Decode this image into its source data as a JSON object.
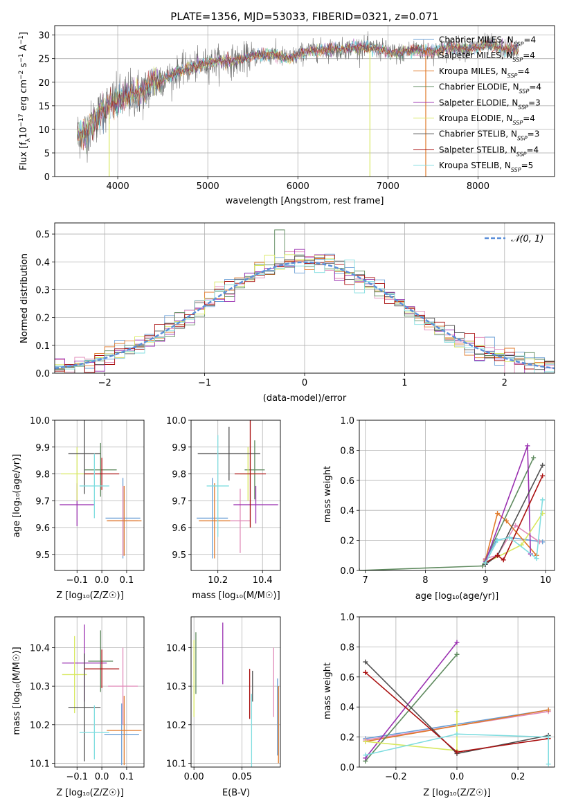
{
  "figure": {
    "title": "PLATE=1356, MJD=53033, FIBERID=0321, z=0.071"
  },
  "series": [
    {
      "name": "Chabrier MILES",
      "nssp": "4",
      "color": "#6a9fd6"
    },
    {
      "name": "Salpeter MILES",
      "nssp": "4",
      "color": "#e08ab8"
    },
    {
      "name": "Kroupa MILES",
      "nssp": "4",
      "color": "#e07a2a"
    },
    {
      "name": "Chabrier ELODIE",
      "nssp": "4",
      "color": "#5e8a5e"
    },
    {
      "name": "Salpeter ELODIE",
      "nssp": "3",
      "color": "#9a30b0"
    },
    {
      "name": "Kroupa ELODIE",
      "nssp": "4",
      "color": "#d8e860"
    },
    {
      "name": "Chabrier STELIB",
      "nssp": "3",
      "color": "#505050"
    },
    {
      "name": "Salpeter STELIB",
      "nssp": "4",
      "color": "#aa1010"
    },
    {
      "name": "Kroupa STELIB",
      "nssp": "5",
      "color": "#80dde0"
    }
  ],
  "chart_data": [
    {
      "id": "spectrum",
      "type": "line",
      "xlabel": "wavelength [Angstrom, rest frame]",
      "ylabel_prefix": "Flux [f",
      "ylabel_sub": "λ",
      "ylabel_mid": "10",
      "ylabel_sup1": "−17",
      "ylabel_rest": " erg cm",
      "ylabel_sup2": "−2",
      "ylabel_s": " s",
      "ylabel_sup3": "−1",
      "ylabel_a": " A",
      "ylabel_sup4": "−1",
      "ylabel_end": "]",
      "xlim": [
        3300,
        8850
      ],
      "ylim": [
        0,
        32
      ],
      "xticks": [
        4000,
        5000,
        6000,
        7000,
        8000
      ],
      "yticks": [
        0,
        5,
        10,
        15,
        20,
        25,
        30
      ],
      "continuum": [
        [
          3550,
          9
        ],
        [
          3650,
          9.5
        ],
        [
          3750,
          12
        ],
        [
          3850,
          14.5
        ],
        [
          3950,
          15.5
        ],
        [
          4050,
          16.5
        ],
        [
          4150,
          17.5
        ],
        [
          4300,
          18
        ],
        [
          4400,
          20
        ],
        [
          4550,
          21
        ],
        [
          4700,
          22.5
        ],
        [
          4900,
          23.5
        ],
        [
          5100,
          24.5
        ],
        [
          5300,
          24.5
        ],
        [
          5500,
          25.5
        ],
        [
          5700,
          26
        ],
        [
          5900,
          25
        ],
        [
          6100,
          26.5
        ],
        [
          6300,
          27
        ],
        [
          6500,
          27
        ],
        [
          6700,
          27.5
        ],
        [
          6900,
          27
        ],
        [
          7100,
          26
        ],
        [
          7300,
          27
        ],
        [
          7500,
          26.5
        ],
        [
          7700,
          27.5
        ],
        [
          7900,
          27
        ],
        [
          8100,
          28
        ],
        [
          8300,
          27
        ],
        [
          8450,
          27
        ]
      ],
      "spikes": [
        {
          "x": 3905,
          "y": 0,
          "color": "#d8e860"
        },
        {
          "x": 6800,
          "y": 0,
          "color": "#d8e860"
        },
        {
          "x": 7420,
          "y": 0,
          "color": "#e07a2a"
        }
      ]
    },
    {
      "id": "residuals",
      "type": "bar",
      "xlabel": "(data-model)/error",
      "ylabel": "Normed distribution",
      "legend": "𝒩(0, 1)",
      "xlim": [
        -2.5,
        2.5
      ],
      "ylim": [
        0,
        0.54
      ],
      "xticks": [
        -2,
        -1,
        0,
        1,
        2
      ],
      "xtick_labels": [
        "−2",
        "−1",
        "0",
        "1",
        "2"
      ],
      "yticks": [
        0.0,
        0.1,
        0.2,
        0.3,
        0.4,
        0.5
      ]
    },
    {
      "id": "age-vs-z",
      "type": "scatter",
      "xlabel": "Z [log₁₀(Z/Z☉)]",
      "ylabel": "age  [log₁₀(age/yr)]",
      "xlim": [
        -0.19,
        0.17
      ],
      "ylim": [
        9.44,
        10.0
      ],
      "xticks": [
        -0.1,
        0.0,
        0.1
      ],
      "xtick_labels": [
        "−0.1",
        "0.0",
        "0.1"
      ],
      "yticks": [
        9.5,
        9.6,
        9.7,
        9.8,
        9.9,
        10.0
      ],
      "points": [
        {
          "series": 0,
          "x": 0.085,
          "y": 9.635,
          "xerr": 0.07,
          "yerr": 0.15
        },
        {
          "series": 1,
          "x": 0.085,
          "y": 9.625,
          "xerr": 0.06,
          "yerr": 0.13
        },
        {
          "series": 2,
          "x": 0.09,
          "y": 9.625,
          "xerr": 0.07,
          "yerr": 0.13
        },
        {
          "series": 3,
          "x": -0.005,
          "y": 9.815,
          "xerr": 0.065,
          "yerr": 0.1
        },
        {
          "series": 4,
          "x": -0.1,
          "y": 9.685,
          "xerr": 0.07,
          "yerr": 0.08
        },
        {
          "series": 5,
          "x": -0.1,
          "y": 9.8,
          "xerr": 0.065,
          "yerr": 0.1
        },
        {
          "series": 6,
          "x": -0.07,
          "y": 9.875,
          "xerr": 0.065,
          "yerr": 0.15
        },
        {
          "series": 7,
          "x": 0.0,
          "y": 9.8,
          "xerr": 0.07,
          "yerr": 0.06
        },
        {
          "series": 8,
          "x": -0.03,
          "y": 9.755,
          "xerr": 0.06,
          "yerr": 0.12
        }
      ]
    },
    {
      "id": "age-vs-mass",
      "type": "scatter",
      "xlabel": "mass [log₁₀(M/M☉)]",
      "ylabel": "",
      "xlim": [
        10.08,
        10.48
      ],
      "ylim": [
        9.44,
        10.0
      ],
      "xticks": [
        10.2,
        10.4
      ],
      "xtick_labels": [
        "10.2",
        "10.4"
      ],
      "yticks": [
        9.5,
        9.6,
        9.7,
        9.8,
        9.9,
        10.0
      ],
      "points": [
        {
          "series": 0,
          "x": 10.175,
          "y": 9.635,
          "xerr": 0.07,
          "yerr": 0.15
        },
        {
          "series": 1,
          "x": 10.3,
          "y": 9.625,
          "xerr": 0.045,
          "yerr": 0.12
        },
        {
          "series": 2,
          "x": 10.185,
          "y": 9.625,
          "xerr": 0.07,
          "yerr": 0.14
        },
        {
          "series": 3,
          "x": 10.365,
          "y": 9.815,
          "xerr": 0.045,
          "yerr": 0.11
        },
        {
          "series": 4,
          "x": 10.37,
          "y": 9.685,
          "xerr": 0.1,
          "yerr": 0.07
        },
        {
          "series": 5,
          "x": 10.335,
          "y": 9.8,
          "xerr": 0.035,
          "yerr": 0.1
        },
        {
          "series": 6,
          "x": 10.25,
          "y": 9.875,
          "xerr": 0.14,
          "yerr": 0.1
        },
        {
          "series": 7,
          "x": 10.345,
          "y": 9.8,
          "xerr": 0.07,
          "yerr": 0.2
        },
        {
          "series": 8,
          "x": 10.2,
          "y": 9.755,
          "xerr": 0.05,
          "yerr": 0.19
        }
      ]
    },
    {
      "id": "mass-weight-vs-age",
      "type": "line",
      "xlabel": "age  [log₁₀(age/yr)]",
      "ylabel": "mass weight",
      "xlim": [
        6.9,
        10.15
      ],
      "ylim": [
        0,
        1.0
      ],
      "xticks": [
        7,
        8,
        9,
        10
      ],
      "yticks": [
        0.0,
        0.2,
        0.4,
        0.6,
        0.8,
        1.0
      ],
      "lines": [
        {
          "series": 0,
          "points": [
            [
              9.0,
              0.07
            ],
            [
              9.18,
              0.2
            ],
            [
              9.4,
              0.22
            ],
            [
              9.95,
              0.19
            ]
          ]
        },
        {
          "series": 1,
          "points": [
            [
              9.0,
              0.08
            ],
            [
              9.2,
              0.1
            ],
            [
              9.5,
              0.3
            ],
            [
              9.9,
              0.19
            ]
          ]
        },
        {
          "series": 2,
          "points": [
            [
              9.0,
              0.07
            ],
            [
              9.2,
              0.38
            ],
            [
              9.35,
              0.33
            ],
            [
              9.85,
              0.1
            ]
          ]
        },
        {
          "series": 3,
          "points": [
            [
              6.9,
              0.0
            ],
            [
              8.95,
              0.03
            ],
            [
              9.8,
              0.75
            ]
          ]
        },
        {
          "series": 4,
          "points": [
            [
              9.0,
              0.06
            ],
            [
              9.7,
              0.83
            ],
            [
              9.75,
              0.11
            ]
          ]
        },
        {
          "series": 5,
          "points": [
            [
              9.0,
              0.05
            ],
            [
              9.6,
              0.17
            ],
            [
              9.95,
              0.38
            ]
          ]
        },
        {
          "series": 6,
          "points": [
            [
              9.0,
              0.04
            ],
            [
              9.2,
              0.1
            ],
            [
              9.95,
              0.7
            ]
          ]
        },
        {
          "series": 7,
          "points": [
            [
              9.0,
              0.05
            ],
            [
              9.2,
              0.1
            ],
            [
              9.3,
              0.07
            ],
            [
              9.95,
              0.63
            ]
          ]
        },
        {
          "series": 8,
          "points": [
            [
              9.0,
              0.05
            ],
            [
              9.2,
              0.2
            ],
            [
              9.4,
              0.22
            ],
            [
              9.85,
              0.08
            ],
            [
              9.95,
              0.47
            ]
          ]
        }
      ]
    },
    {
      "id": "mass-vs-z",
      "type": "scatter",
      "xlabel": "Z [log₁₀(Z/Z☉)]",
      "ylabel": "mass [log₁₀(M/M☉)]",
      "xlim": [
        -0.19,
        0.17
      ],
      "ylim": [
        10.09,
        10.48
      ],
      "xticks": [
        -0.1,
        0.0,
        0.1
      ],
      "xtick_labels": [
        "−0.1",
        "0.0",
        "0.1"
      ],
      "yticks": [
        10.1,
        10.2,
        10.3,
        10.4
      ],
      "points": [
        {
          "series": 0,
          "x": 0.08,
          "y": 10.175,
          "xerr": 0.07,
          "yerr": 0.08
        },
        {
          "series": 1,
          "x": 0.085,
          "y": 10.3,
          "xerr": 0.06,
          "yerr": 0.1
        },
        {
          "series": 2,
          "x": 0.09,
          "y": 10.185,
          "xerr": 0.07,
          "yerr": 0.09
        },
        {
          "series": 3,
          "x": -0.005,
          "y": 10.365,
          "xerr": 0.05,
          "yerr": 0.08
        },
        {
          "series": 4,
          "x": -0.07,
          "y": 10.36,
          "xerr": 0.09,
          "yerr": 0.1
        },
        {
          "series": 5,
          "x": -0.11,
          "y": 10.33,
          "xerr": 0.05,
          "yerr": 0.1
        },
        {
          "series": 6,
          "x": -0.07,
          "y": 10.245,
          "xerr": 0.065,
          "yerr": 0.14
        },
        {
          "series": 7,
          "x": 0.0,
          "y": 10.345,
          "xerr": 0.07,
          "yerr": 0.05
        },
        {
          "series": 8,
          "x": -0.03,
          "y": 10.18,
          "xerr": 0.06,
          "yerr": 0.07
        }
      ]
    },
    {
      "id": "mass-vs-ebv",
      "type": "scatter",
      "xlabel": "E(B-V)",
      "ylabel": "",
      "xlim": [
        -0.003,
        0.09
      ],
      "ylim": [
        10.09,
        10.48
      ],
      "xticks": [
        0.0,
        0.05
      ],
      "xtick_labels": [
        "0.00",
        "0.05"
      ],
      "yticks": [
        10.1,
        10.2,
        10.3,
        10.4
      ],
      "points": [
        {
          "series": 0,
          "x": 0.087,
          "y": 10.22,
          "xerr": 0,
          "yerr": 0.1
        },
        {
          "series": 1,
          "x": 0.083,
          "y": 10.31,
          "xerr": 0,
          "yerr": 0.09
        },
        {
          "series": 2,
          "x": 0.088,
          "y": 10.2,
          "xerr": 0,
          "yerr": 0.1
        },
        {
          "series": 3,
          "x": 0.002,
          "y": 10.36,
          "xerr": 0,
          "yerr": 0.08
        },
        {
          "series": 4,
          "x": 0.03,
          "y": 10.385,
          "xerr": 0,
          "yerr": 0.08
        },
        {
          "series": 5,
          "x": 0.0,
          "y": 10.32,
          "xerr": 0,
          "yerr": 0.1
        },
        {
          "series": 6,
          "x": 0.061,
          "y": 10.3,
          "xerr": 0,
          "yerr": 0.04
        },
        {
          "series": 7,
          "x": 0.058,
          "y": 10.28,
          "xerr": 0,
          "yerr": 0.065
        },
        {
          "series": 8,
          "x": 0.06,
          "y": 10.18,
          "xerr": 0,
          "yerr": 0.1
        }
      ]
    },
    {
      "id": "mass-weight-vs-z",
      "type": "line",
      "xlabel": "Z [log₁₀(Z/Z☉)]",
      "ylabel": "mass weight",
      "xlim": [
        -0.32,
        0.32
      ],
      "ylim": [
        0,
        1.0
      ],
      "xticks": [
        -0.2,
        0.0,
        0.2
      ],
      "xtick_labels": [
        "−0.2",
        "0.0",
        "0.2"
      ],
      "yticks": [
        0.0,
        0.2,
        0.4,
        0.6,
        0.8,
        1.0
      ],
      "lines": [
        {
          "series": 0,
          "points": [
            [
              -0.3,
              0.19
            ],
            [
              0.3,
              0.38
            ]
          ]
        },
        {
          "series": 1,
          "points": [
            [
              -0.3,
              0.18
            ],
            [
              0.3,
              0.37
            ]
          ]
        },
        {
          "series": 2,
          "points": [
            [
              -0.3,
              0.17
            ],
            [
              0.3,
              0.38
            ]
          ]
        },
        {
          "series": 3,
          "points": [
            [
              -0.3,
              0.04
            ],
            [
              0.0,
              0.75
            ]
          ]
        },
        {
          "series": 4,
          "points": [
            [
              -0.3,
              0.06
            ],
            [
              0.0,
              0.83
            ]
          ]
        },
        {
          "series": 5,
          "points": [
            [
              -0.3,
              0.17
            ],
            [
              0.0,
              0.11
            ],
            [
              0.0,
              0.37
            ]
          ]
        },
        {
          "series": 6,
          "points": [
            [
              -0.3,
              0.7
            ],
            [
              0.0,
              0.09
            ],
            [
              0.3,
              0.21
            ]
          ]
        },
        {
          "series": 7,
          "points": [
            [
              -0.3,
              0.63
            ],
            [
              0.0,
              0.1
            ],
            [
              0.3,
              0.19
            ]
          ]
        },
        {
          "series": 8,
          "points": [
            [
              -0.3,
              0.08
            ],
            [
              0.0,
              0.22
            ],
            [
              0.3,
              0.2
            ],
            [
              0.3,
              0.02
            ]
          ]
        }
      ]
    }
  ]
}
